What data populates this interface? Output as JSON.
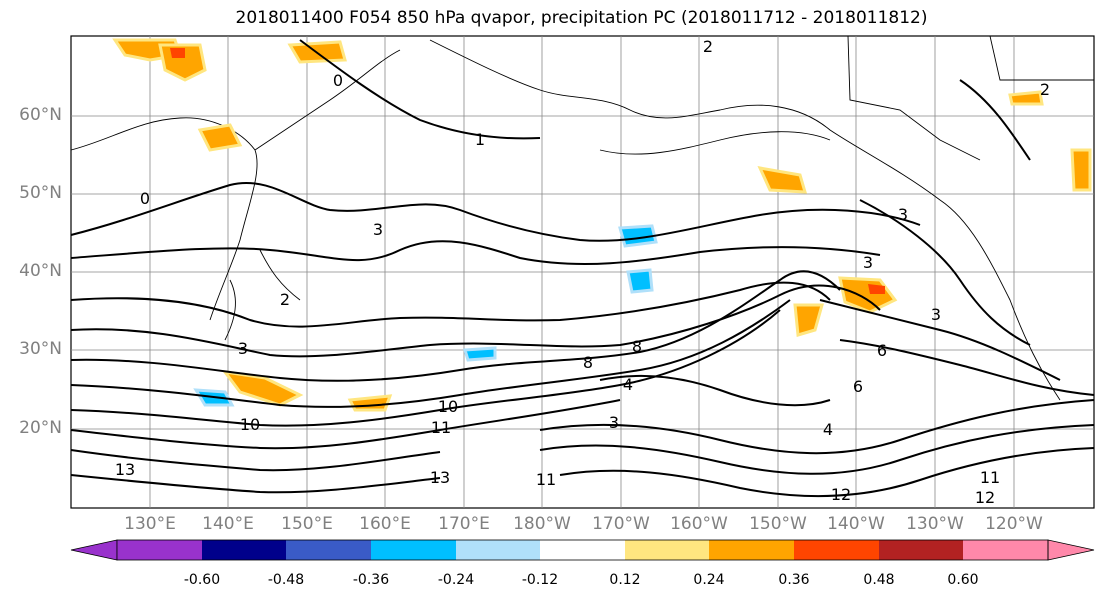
{
  "title": "2018011400 F054 850 hPa qvapor, precipitation PC (2018011712 - 2018011812)",
  "map": {
    "lat_labels": [
      "60°N",
      "50°N",
      "40°N",
      "30°N",
      "20°N"
    ],
    "lon_labels": [
      "130°E",
      "140°E",
      "150°E",
      "160°E",
      "170°E",
      "180°W",
      "170°W",
      "160°W",
      "150°W",
      "140°W",
      "130°W",
      "120°W"
    ],
    "contour_labels": [
      "2",
      "0",
      "1",
      "3",
      "3",
      "3",
      "2",
      "3",
      "3",
      "6",
      "6",
      "8",
      "4",
      "8",
      "10",
      "10",
      "11",
      "13",
      "3",
      "4",
      "11",
      "12",
      "12",
      "11",
      "13",
      "2",
      "0"
    ]
  },
  "colorbar": {
    "colors": [
      "#9932cc",
      "#00008b",
      "#3a5bc7",
      "#00bfff",
      "#b0e0fa",
      "#ffffff",
      "#ffe680",
      "#ffa500",
      "#ff4500",
      "#b22222",
      "#ff88aa"
    ],
    "ticks": [
      "-0.60",
      "-0.48",
      "-0.36",
      "-0.24",
      "-0.12",
      "0.12",
      "0.24",
      "0.36",
      "0.48",
      "0.60"
    ]
  }
}
